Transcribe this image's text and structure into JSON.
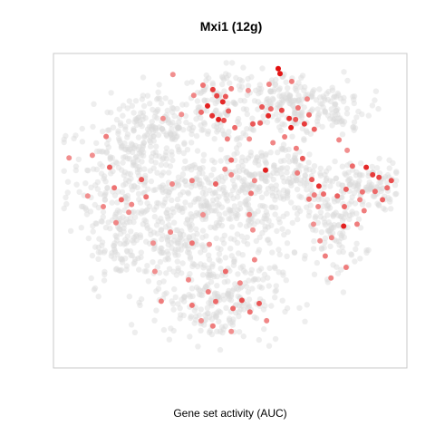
{
  "chart_data": {
    "type": "scatter",
    "title": "Mxi1 (12g)",
    "xlabel": "Gene set activity (AUC)",
    "ylabel": "",
    "grid": false,
    "legend": "none",
    "xlim": [
      0,
      100
    ],
    "ylim": [
      0,
      100
    ],
    "colors": {
      "background_point": "#d9d9d9",
      "active_low": "#f7c4c4",
      "active_high": "#e00000",
      "frame": "#c8c8c8"
    },
    "series": [
      {
        "name": "",
        "points": [
          [
            63.6,
            95.2,
            1.0
          ],
          [
            64.1,
            93.6,
            0.95
          ],
          [
            45.1,
            88.5,
            0.75
          ],
          [
            46.2,
            86.5,
            0.7
          ],
          [
            47.9,
            84.6,
            0.85
          ],
          [
            48.7,
            86.3,
            0.6
          ],
          [
            43.6,
            83.3,
            0.9
          ],
          [
            44.9,
            80.2,
            0.8
          ],
          [
            46.7,
            79.0,
            0.9
          ],
          [
            48.2,
            78.7,
            0.65
          ],
          [
            41.8,
            81.3,
            0.5
          ],
          [
            49.5,
            81.7,
            0.55
          ],
          [
            39.7,
            86.7,
            0.35
          ],
          [
            42.3,
            89.9,
            0.45
          ],
          [
            50.3,
            88.8,
            0.4
          ],
          [
            36.2,
            80.6,
            0.3
          ],
          [
            51.3,
            76.4,
            0.5
          ],
          [
            56.4,
            77.6,
            0.6
          ],
          [
            60.8,
            80.2,
            0.85
          ],
          [
            59.0,
            83.0,
            0.6
          ],
          [
            61.5,
            82.4,
            0.5
          ],
          [
            58.5,
            77.9,
            0.55
          ],
          [
            64.6,
            81.9,
            0.7
          ],
          [
            66.7,
            79.3,
            0.8
          ],
          [
            67.2,
            76.4,
            0.9
          ],
          [
            68.5,
            79.0,
            0.6
          ],
          [
            71.0,
            77.6,
            0.75
          ],
          [
            72.3,
            80.5,
            0.5
          ],
          [
            69.2,
            82.7,
            0.45
          ],
          [
            71.8,
            85.5,
            0.35
          ],
          [
            73.8,
            75.9,
            0.55
          ],
          [
            67.4,
            91.1,
            0.4
          ],
          [
            61.0,
            90.2,
            0.35
          ],
          [
            55.1,
            88.2,
            0.3
          ],
          [
            65.4,
            73.5,
            0.4
          ],
          [
            62.1,
            71.6,
            0.35
          ],
          [
            55.4,
            72.8,
            0.3
          ],
          [
            68.7,
            69.8,
            0.4
          ],
          [
            70.5,
            66.6,
            0.6
          ],
          [
            60.0,
            62.9,
            0.9
          ],
          [
            50.3,
            66.1,
            0.5
          ],
          [
            48.5,
            63.2,
            0.35
          ],
          [
            45.9,
            58.5,
            0.55
          ],
          [
            55.9,
            55.5,
            0.45
          ],
          [
            56.9,
            59.6,
            0.35
          ],
          [
            73.1,
            59.9,
            0.6
          ],
          [
            75.1,
            57.8,
            0.8
          ],
          [
            76.4,
            55.3,
            0.5
          ],
          [
            73.8,
            55.0,
            0.4
          ],
          [
            72.3,
            53.7,
            0.45
          ],
          [
            74.9,
            51.3,
            0.35
          ],
          [
            80.3,
            54.7,
            0.55
          ],
          [
            82.3,
            51.3,
            0.5
          ],
          [
            82.1,
            45.1,
            0.9
          ],
          [
            82.8,
            56.8,
            0.55
          ],
          [
            84.6,
            64.2,
            0.5
          ],
          [
            88.5,
            63.8,
            0.85
          ],
          [
            90.3,
            61.4,
            0.75
          ],
          [
            92.1,
            60.6,
            0.7
          ],
          [
            91.0,
            56.1,
            0.5
          ],
          [
            87.4,
            56.0,
            0.45
          ],
          [
            93.1,
            53.5,
            0.55
          ],
          [
            95.6,
            59.6,
            0.65
          ],
          [
            85.9,
            45.7,
            0.4
          ],
          [
            78.7,
            41.4,
            0.35
          ],
          [
            76.9,
            35.6,
            0.4
          ],
          [
            75.4,
            40.4,
            0.3
          ],
          [
            82.8,
            32.0,
            0.4
          ],
          [
            78.5,
            28.6,
            0.35
          ],
          [
            73.6,
            45.7,
            0.3
          ],
          [
            55.4,
            48.8,
            0.35
          ],
          [
            56.4,
            43.9,
            0.3
          ],
          [
            39.2,
            39.7,
            0.45
          ],
          [
            44.1,
            39.3,
            0.3
          ],
          [
            56.9,
            34.4,
            0.35
          ],
          [
            52.8,
            27.0,
            0.35
          ],
          [
            48.7,
            30.7,
            0.5
          ],
          [
            53.3,
            21.5,
            0.65
          ],
          [
            50.8,
            18.9,
            0.5
          ],
          [
            55.6,
            17.8,
            0.45
          ],
          [
            58.2,
            20.5,
            0.6
          ],
          [
            60.3,
            15.0,
            0.35
          ],
          [
            45.1,
            13.3,
            0.4
          ],
          [
            41.8,
            15.0,
            0.3
          ],
          [
            39.2,
            19.9,
            0.45
          ],
          [
            45.9,
            21.1,
            0.5
          ],
          [
            43.8,
            24.2,
            0.4
          ],
          [
            50.3,
            11.6,
            0.3
          ],
          [
            30.5,
            21.2,
            0.4
          ],
          [
            38.2,
            28.0,
            0.35
          ],
          [
            28.7,
            30.7,
            0.3
          ],
          [
            14.9,
            73.6,
            0.4
          ],
          [
            15.9,
            63.8,
            0.55
          ],
          [
            17.2,
            57.3,
            0.45
          ],
          [
            11.0,
            67.6,
            0.3
          ],
          [
            14.1,
            51.3,
            0.35
          ],
          [
            19.2,
            53.5,
            0.5
          ],
          [
            22.1,
            52.0,
            0.35
          ],
          [
            24.9,
            59.9,
            0.6
          ],
          [
            26.2,
            54.4,
            0.45
          ],
          [
            17.7,
            46.2,
            0.35
          ],
          [
            21.3,
            49.5,
            0.3
          ],
          [
            9.7,
            54.7,
            0.3
          ],
          [
            4.4,
            66.8,
            0.3
          ],
          [
            33.6,
            58.5,
            0.35
          ],
          [
            39.2,
            59.6,
            0.4
          ],
          [
            33.1,
            43.2,
            0.35
          ],
          [
            28.2,
            39.7,
            0.3
          ],
          [
            42.3,
            48.7,
            0.3
          ],
          [
            33.8,
            93.3,
            0.3
          ],
          [
            31.0,
            79.3,
            0.3
          ],
          [
            49.2,
            72.8,
            0.4
          ],
          [
            50.3,
            61.4,
            0.35
          ],
          [
            80.8,
            72.5,
            0.35
          ],
          [
            83.1,
            69.2,
            0.3
          ],
          [
            94.4,
            57.3,
            0.5
          ],
          [
            86.7,
            53.5,
            0.35
          ],
          [
            87.9,
            50.0,
            0.4
          ],
          [
            69.0,
            62.0,
            0.4
          ]
        ]
      }
    ]
  }
}
